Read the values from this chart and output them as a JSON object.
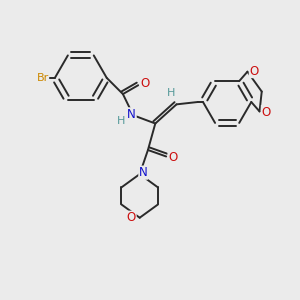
{
  "bg_color": "#ebebeb",
  "bond_color": "#2a2a2a",
  "atom_colors": {
    "Br": "#cc8800",
    "N": "#1010cc",
    "O": "#cc1010",
    "H": "#559999",
    "C": "#2a2a2a"
  }
}
